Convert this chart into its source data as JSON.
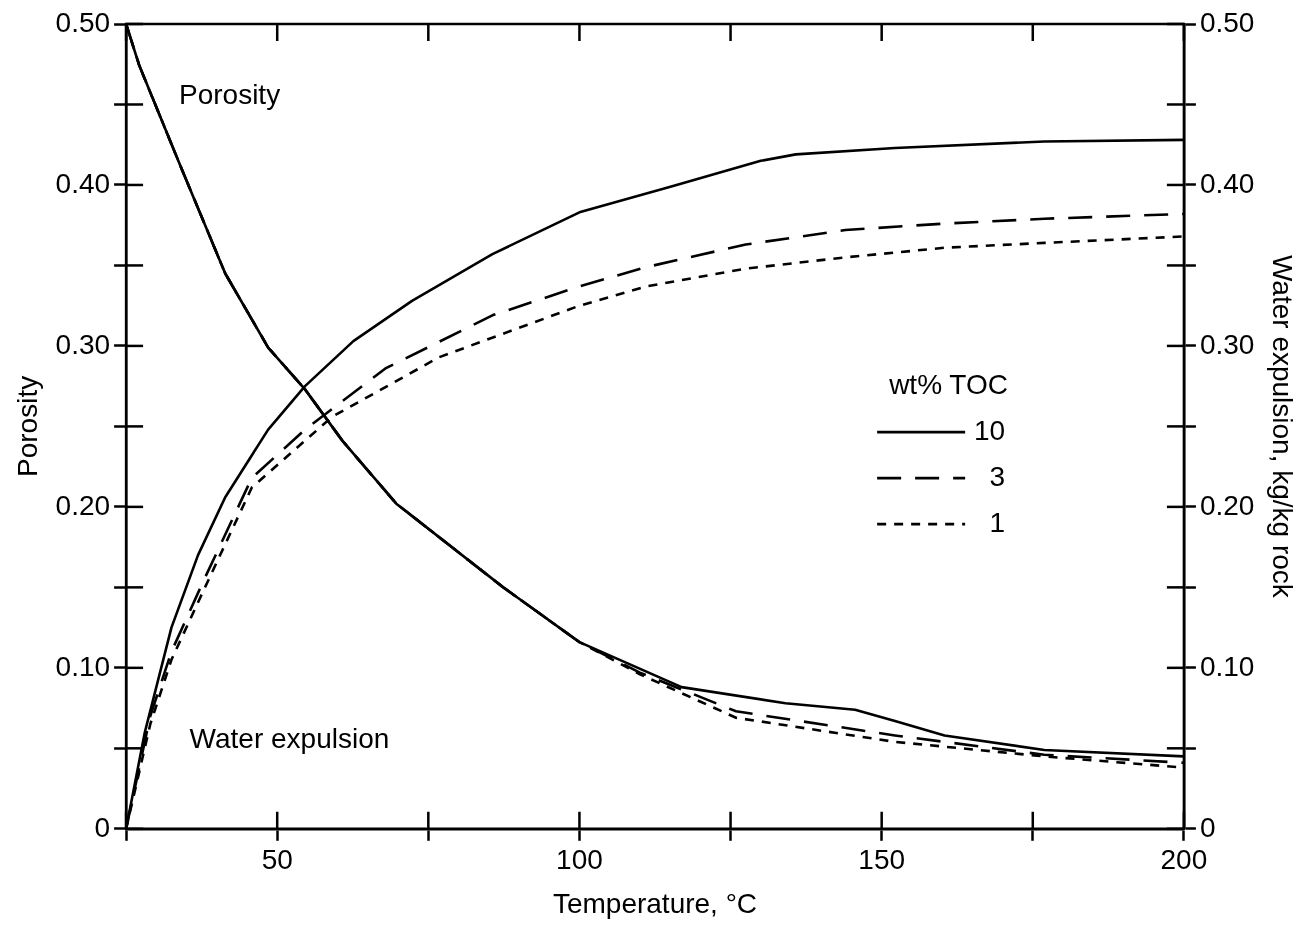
{
  "chart_data": {
    "type": "line",
    "xlabel": "Temperature, °C",
    "ylabel": "Porosity",
    "y2label": "Water expulsion, kg/kg rock",
    "legend_title": "wt% TOC",
    "legend": "right",
    "grid": false,
    "marker": "none",
    "xlim": [
      25,
      200
    ],
    "xticks": [
      {
        "value": 25,
        "label": null
      },
      50,
      {
        "value": 75,
        "label": null
      },
      100,
      {
        "value": 125,
        "label": null
      },
      150,
      {
        "value": 175,
        "label": null
      },
      200
    ],
    "ylim": [
      0,
      0.5
    ],
    "yticks": [
      {
        "value": 0,
        "label": "0"
      },
      {
        "value": 0.05,
        "label": null
      },
      {
        "value": 0.1,
        "label": "0.10"
      },
      {
        "value": 0.15,
        "label": null
      },
      {
        "value": 0.2,
        "label": "0.20"
      },
      {
        "value": 0.25,
        "label": null
      },
      {
        "value": 0.3,
        "label": "0.30"
      },
      {
        "value": 0.35,
        "label": null
      },
      {
        "value": 0.4,
        "label": "0.40"
      },
      {
        "value": 0.45,
        "label": null
      },
      {
        "value": 0.5,
        "label": "0.50"
      }
    ],
    "y2lim": [
      0,
      0.5
    ],
    "y2ticks": [
      {
        "value": 0,
        "label": "0"
      },
      {
        "value": 0.05,
        "label": null
      },
      {
        "value": 0.1,
        "label": "0.10"
      },
      {
        "value": 0.15,
        "label": null
      },
      {
        "value": 0.2,
        "label": "0.20"
      },
      {
        "value": 0.25,
        "label": null
      },
      {
        "value": 0.3,
        "label": "0.30"
      },
      {
        "value": 0.35,
        "label": null
      },
      {
        "value": 0.4,
        "label": "0.40"
      },
      {
        "value": 0.45,
        "label": null
      },
      {
        "value": 0.5,
        "label": "0.50"
      }
    ],
    "annotations": [
      "Porosity",
      "Water expulsion"
    ],
    "series": [
      {
        "name": "10",
        "color": "#000000",
        "line_style": "solid",
        "axis": "y2",
        "x": [
          25,
          28.1,
          32.5,
          36.9,
          41.4,
          48.5,
          54.6,
          62.6,
          72.3,
          85.6,
          100,
          115.2,
          130,
          135.8,
          152.2,
          176.9,
          200
        ],
        "values": [
          0,
          0.06,
          0.125,
          0.17,
          0.206,
          0.248,
          0.275,
          0.303,
          0.328,
          0.357,
          0.383,
          0.399,
          0.415,
          0.419,
          0.423,
          0.427,
          0.428
        ]
      },
      {
        "name": "3",
        "color": "#000000",
        "line_style": "dashed",
        "axis": "y2",
        "x": [
          25,
          29,
          32.5,
          37.8,
          45.8,
          54.6,
          67.9,
          85.6,
          100,
          111.1,
          127.5,
          144,
          160.4,
          176.9,
          200
        ],
        "values": [
          0,
          0.07,
          0.11,
          0.154,
          0.218,
          0.248,
          0.286,
          0.319,
          0.337,
          0.349,
          0.363,
          0.372,
          0.376,
          0.379,
          0.382
        ]
      },
      {
        "name": "1",
        "color": "#000000",
        "line_style": "dotted",
        "axis": "y2",
        "x": [
          25,
          29,
          32.5,
          37.8,
          45.8,
          59.1,
          76.8,
          100,
          111.1,
          127.5,
          144,
          160.4,
          176.9,
          200
        ],
        "values": [
          0,
          0.065,
          0.105,
          0.148,
          0.212,
          0.256,
          0.293,
          0.325,
          0.337,
          0.348,
          0.355,
          0.361,
          0.364,
          0.368
        ]
      },
      {
        "color": "#000000",
        "line_style": "solid",
        "x": [
          25,
          27.2,
          34.3,
          41.4,
          48.5,
          54.6,
          60.8,
          69.7,
          87.4,
          100,
          116.9,
          134.1,
          145.6,
          152.2,
          160.4,
          176.9,
          200
        ],
        "values": [
          0.5,
          0.474,
          0.409,
          0.345,
          0.299,
          0.273,
          0.241,
          0.202,
          0.15,
          0.116,
          0.088,
          0.078,
          0.074,
          0.067,
          0.058,
          0.049,
          0.045
        ]
      },
      {
        "color": "#000000",
        "line_style": "dashed",
        "x": [
          25,
          27.2,
          34.3,
          41.4,
          48.5,
          54.6,
          60.8,
          69.7,
          87.4,
          100,
          110,
          125.9,
          152.2,
          176.9,
          200
        ],
        "values": [
          0.5,
          0.474,
          0.409,
          0.345,
          0.299,
          0.273,
          0.241,
          0.202,
          0.15,
          0.116,
          0.097,
          0.073,
          0.058,
          0.046,
          0.041
        ]
      },
      {
        "color": "#000000",
        "line_style": "dotted",
        "x": [
          25,
          27.2,
          34.3,
          41.4,
          48.5,
          54.6,
          60.8,
          69.7,
          87.4,
          100,
          110,
          125.9,
          152.2,
          176.9,
          200
        ],
        "values": [
          0.5,
          0.474,
          0.409,
          0.345,
          0.299,
          0.273,
          0.241,
          0.202,
          0.15,
          0.116,
          0.096,
          0.069,
          0.054,
          0.045,
          0.038
        ]
      }
    ]
  }
}
